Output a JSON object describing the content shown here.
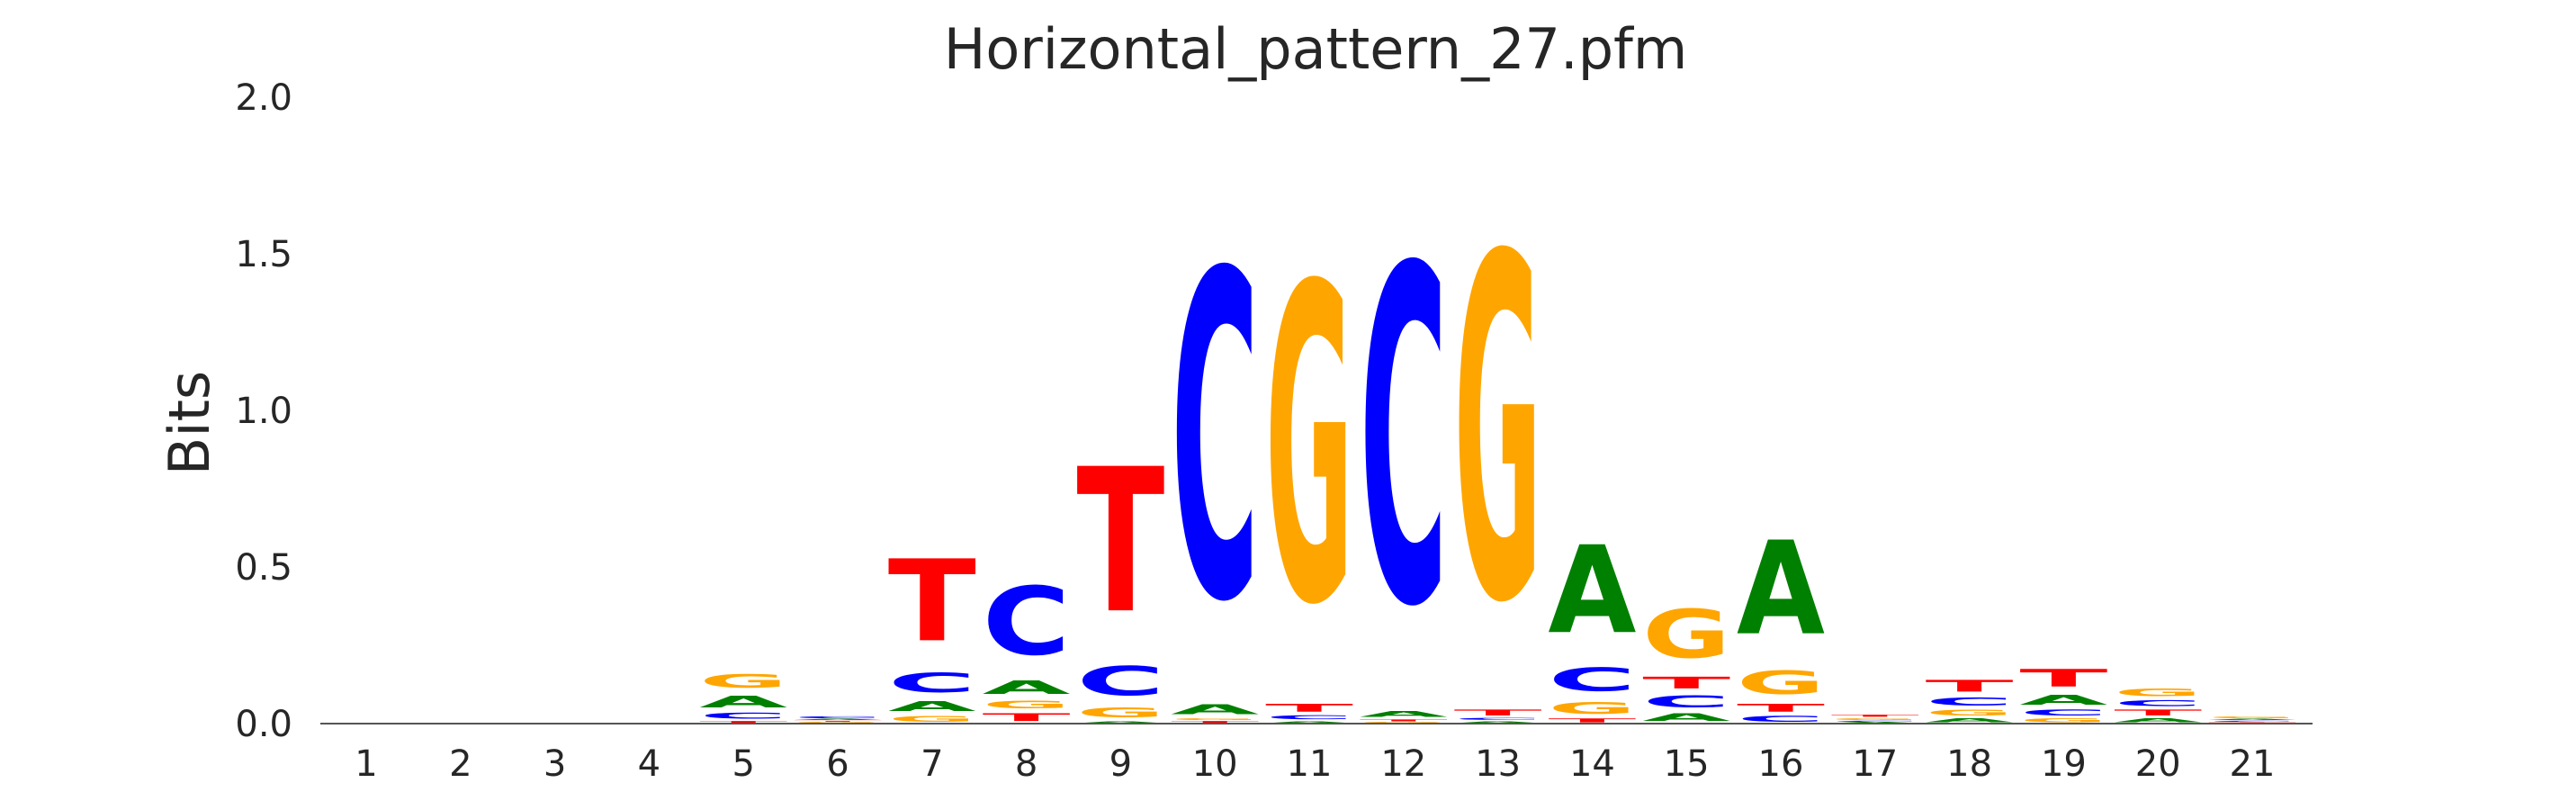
{
  "chart_data": {
    "type": "sequence-logo",
    "title": "Horizontal_pattern_27.pfm",
    "xlabel": "",
    "ylabel": "Bits",
    "ylim": [
      0,
      2.0
    ],
    "yticks": [
      "0.0",
      "0.5",
      "1.0",
      "1.5",
      "2.0"
    ],
    "grid": false,
    "alphabet_colors": {
      "A": "#008000",
      "C": "#0000ff",
      "G": "#ffa500",
      "T": "#ff0000"
    },
    "positions": [
      {
        "label": "1",
        "stack": []
      },
      {
        "label": "2",
        "stack": []
      },
      {
        "label": "3",
        "stack": []
      },
      {
        "label": "4",
        "stack": []
      },
      {
        "label": "5",
        "stack": [
          [
            "T",
            0.01
          ],
          [
            "C",
            0.03
          ],
          [
            "A",
            0.06
          ],
          [
            "G",
            0.07
          ]
        ]
      },
      {
        "label": "6",
        "stack": [
          [
            "G",
            0.005
          ],
          [
            "T",
            0.005
          ],
          [
            "A",
            0.005
          ],
          [
            "C",
            0.01
          ]
        ]
      },
      {
        "label": "7",
        "stack": [
          [
            "G",
            0.03
          ],
          [
            "A",
            0.05
          ],
          [
            "C",
            0.1
          ],
          [
            "T",
            0.42
          ]
        ]
      },
      {
        "label": "8",
        "stack": [
          [
            "T",
            0.04
          ],
          [
            "G",
            0.04
          ],
          [
            "A",
            0.07
          ],
          [
            "C",
            0.35
          ]
        ]
      },
      {
        "label": "9",
        "stack": [
          [
            "A",
            0.01
          ],
          [
            "G",
            0.05
          ],
          [
            "C",
            0.15
          ],
          [
            "T",
            0.74
          ]
        ]
      },
      {
        "label": "10",
        "stack": [
          [
            "T",
            0.01
          ],
          [
            "G",
            0.01
          ],
          [
            "A",
            0.05
          ],
          [
            "C",
            1.67
          ]
        ]
      },
      {
        "label": "11",
        "stack": [
          [
            "A",
            0.01
          ],
          [
            "C",
            0.02
          ],
          [
            "T",
            0.04
          ],
          [
            "G",
            1.62
          ]
        ]
      },
      {
        "label": "12",
        "stack": [
          [
            "G",
            0.005
          ],
          [
            "T",
            0.01
          ],
          [
            "A",
            0.03
          ],
          [
            "C",
            1.72
          ]
        ]
      },
      {
        "label": "13",
        "stack": [
          [
            "A",
            0.01
          ],
          [
            "C",
            0.01
          ],
          [
            "T",
            0.03
          ],
          [
            "G",
            1.76
          ]
        ]
      },
      {
        "label": "14",
        "stack": [
          [
            "T",
            0.02
          ],
          [
            "G",
            0.06
          ],
          [
            "C",
            0.12
          ],
          [
            "A",
            0.45
          ]
        ]
      },
      {
        "label": "15",
        "stack": [
          [
            "A",
            0.04
          ],
          [
            "C",
            0.06
          ],
          [
            "T",
            0.06
          ],
          [
            "G",
            0.25
          ]
        ]
      },
      {
        "label": "16",
        "stack": [
          [
            "C",
            0.03
          ],
          [
            "T",
            0.04
          ],
          [
            "G",
            0.12
          ],
          [
            "A",
            0.48
          ]
        ]
      },
      {
        "label": "17",
        "stack": [
          [
            "A",
            0.005
          ],
          [
            "C",
            0.005
          ],
          [
            "G",
            0.01
          ],
          [
            "T",
            0.01
          ]
        ]
      },
      {
        "label": "18",
        "stack": [
          [
            "A",
            0.02
          ],
          [
            "G",
            0.03
          ],
          [
            "C",
            0.04
          ],
          [
            "T",
            0.06
          ]
        ]
      },
      {
        "label": "19",
        "stack": [
          [
            "G",
            0.02
          ],
          [
            "C",
            0.03
          ],
          [
            "A",
            0.05
          ],
          [
            "T",
            0.09
          ]
        ]
      },
      {
        "label": "20",
        "stack": [
          [
            "A",
            0.02
          ],
          [
            "T",
            0.03
          ],
          [
            "C",
            0.03
          ],
          [
            "G",
            0.04
          ]
        ]
      },
      {
        "label": "21",
        "stack": [
          [
            "T",
            0.005
          ],
          [
            "C",
            0.005
          ],
          [
            "A",
            0.005
          ],
          [
            "G",
            0.01
          ]
        ]
      }
    ]
  }
}
